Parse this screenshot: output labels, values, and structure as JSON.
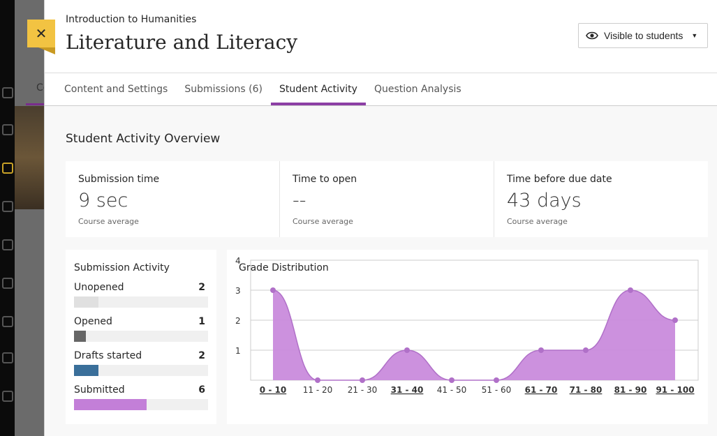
{
  "background": {
    "partial_text": "Co"
  },
  "header": {
    "course": "Introduction to Humanities",
    "title": "Literature and Literacy",
    "visibility": "Visible to students",
    "close_label": "✕"
  },
  "tabs": [
    {
      "label": "Content and Settings"
    },
    {
      "label": "Submissions (6)"
    },
    {
      "label": "Student Activity",
      "active": true
    },
    {
      "label": "Question Analysis"
    }
  ],
  "overview": {
    "title": "Student Activity Overview",
    "stats": [
      {
        "label": "Submission time",
        "value": "9 sec",
        "caption": "Course average"
      },
      {
        "label": "Time to open",
        "value": "--",
        "caption": "Course average"
      },
      {
        "label": "Time before due date",
        "value": "43 days",
        "caption": "Course average"
      }
    ]
  },
  "submission_activity": {
    "title": "Submission Activity",
    "max": 6,
    "rows": [
      {
        "label": "Unopened",
        "count": 2,
        "color": "#e0e0e0"
      },
      {
        "label": "Opened",
        "count": 1,
        "color": "#666666"
      },
      {
        "label": "Drafts started",
        "count": 2,
        "color": "#3a6f9a"
      },
      {
        "label": "Submitted",
        "count": 6,
        "color": "#c37fd8"
      }
    ]
  },
  "chart_data": {
    "type": "area",
    "title": "Grade Distribution",
    "categories": [
      "0 - 10",
      "11 - 20",
      "21 - 30",
      "31 - 40",
      "41 - 50",
      "51 - 60",
      "61 - 70",
      "71 - 80",
      "81 - 90",
      "91 - 100"
    ],
    "values": [
      3,
      0,
      0,
      1,
      0,
      0,
      1,
      1,
      3,
      2
    ],
    "ylim": [
      0,
      4
    ],
    "yticks": [
      1,
      2,
      3,
      4
    ],
    "grid": true,
    "color": "#c98bdc"
  }
}
